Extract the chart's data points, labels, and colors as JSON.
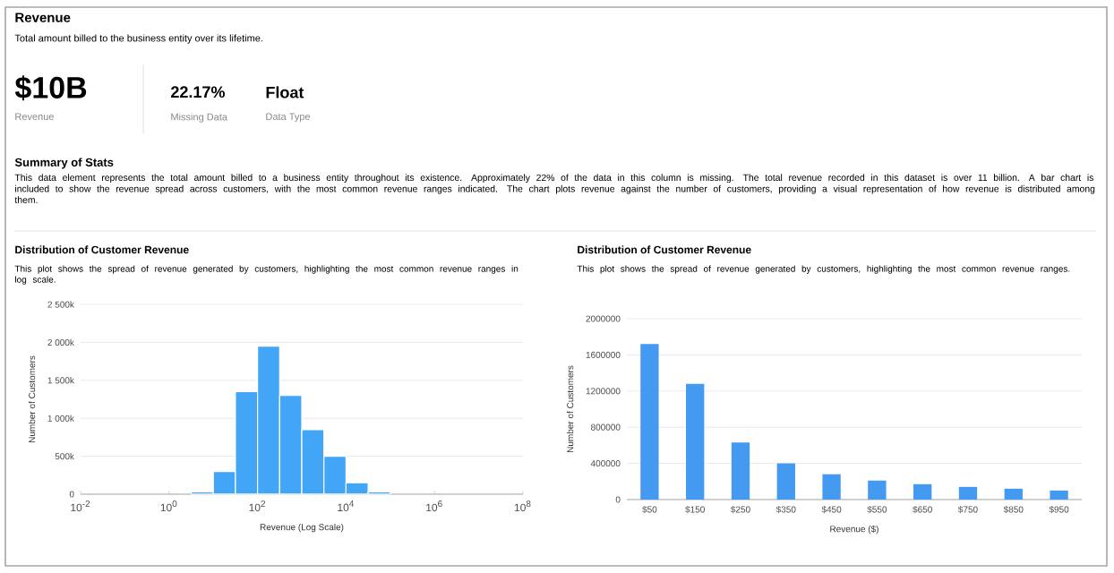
{
  "chart_data": [
    {
      "type": "other",
      "title": "Revenue",
      "subtitle": "Total amount billed to the business entity over its lifetime.",
      "annotations": [
        "$10B",
        "Revenue",
        "22.17%",
        "Missing Data",
        "Float",
        "Data Type",
        "Summary of Stats",
        "This data element represents the total amount billed to a business entity throughout its existence. Approximately 22% of the data in this column is missing. The total revenue recorded in this dataset is over 11 billion. A bar chart is included to show the revenue spread across customers, with the most common revenue ranges indicated. The chart plots revenue against the number of customers, providing a visual representation of how revenue is distributed among them."
      ]
    },
    {
      "type": "histogram",
      "title": "Distribution of Customer Revenue",
      "subtitle": "This plot shows the spread of revenue generated by customers, highlighting the most common revenue ranges in log scale.",
      "xlabel": "Revenue (Log Scale)",
      "ylabel": "Number of Customers",
      "log": "x",
      "color": "#42a5f5",
      "grid": "y",
      "bins": [
        3.162,
        10,
        31.62,
        100,
        316.2,
        1000,
        3162,
        10000,
        31620,
        100000
      ],
      "values": [
        30000,
        300000,
        1350000,
        1950000,
        1300000,
        850000,
        500000,
        150000,
        30000
      ],
      "xlim": [
        0.01,
        100000000
      ],
      "xticks": [
        {
          "value": 0.01,
          "label": "10$^{-2}$"
        },
        {
          "value": 1,
          "label": "10$^{0}$"
        },
        {
          "value": 100,
          "label": "10$^{2}$"
        },
        {
          "value": 10000,
          "label": "10$^{4}$"
        },
        {
          "value": 1000000,
          "label": "10$^{6}$"
        },
        {
          "value": 100000000,
          "label": "10$^{8}$"
        }
      ],
      "ylim": [
        0,
        2500000
      ],
      "yticks": [
        0,
        {
          "value": 500000,
          "label": "500k"
        },
        {
          "value": 1000000,
          "label": "1 000k"
        },
        {
          "value": 1500000,
          "label": "1 500k"
        },
        {
          "value": 2000000,
          "label": "2 000k"
        },
        {
          "value": 2500000,
          "label": "2 500k"
        }
      ]
    },
    {
      "type": "bar",
      "title": "Distribution of Customer Revenue",
      "subtitle": "This plot shows the spread of revenue generated by customers, highlighting the most common revenue ranges.",
      "xlabel": "Revenue ($)",
      "ylabel": "Number of Customers",
      "color": "#4499f0",
      "grid": "y",
      "categories": [
        "$50",
        "$150",
        "$250",
        "$350",
        "$450",
        "$550",
        "$650",
        "$750",
        "$850",
        "$950"
      ],
      "values": [
        1720000,
        1280000,
        630000,
        400000,
        280000,
        210000,
        170000,
        140000,
        120000,
        100000
      ],
      "ylim": [
        0,
        2000000
      ],
      "yticks": [
        0,
        400000,
        800000,
        1200000,
        1600000,
        2000000
      ]
    }
  ]
}
